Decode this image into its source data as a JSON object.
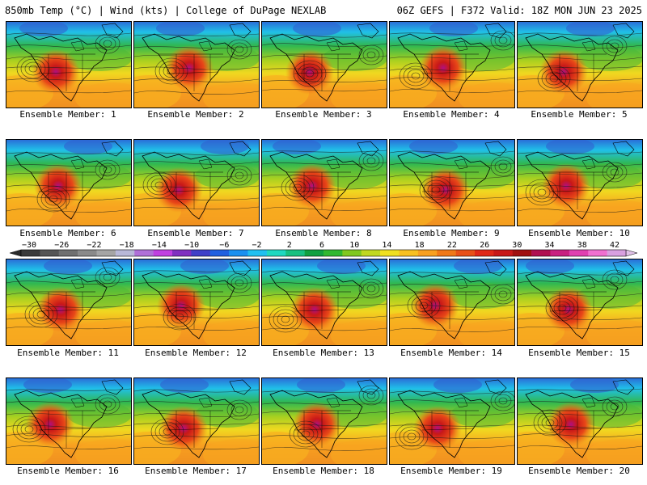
{
  "header": {
    "left": "850mb Temp (°C) | Wind (kts) | College of DuPage NEXLAB",
    "right": "06Z GEFS | F372 Valid: 18Z MON JUN 23 2025"
  },
  "panels": [
    {
      "member": 1,
      "caption": "Ensemble Member: 1"
    },
    {
      "member": 2,
      "caption": "Ensemble Member: 2"
    },
    {
      "member": 3,
      "caption": "Ensemble Member: 3"
    },
    {
      "member": 4,
      "caption": "Ensemble Member: 4"
    },
    {
      "member": 5,
      "caption": "Ensemble Member: 5"
    },
    {
      "member": 6,
      "caption": "Ensemble Member: 6"
    },
    {
      "member": 7,
      "caption": "Ensemble Member: 7"
    },
    {
      "member": 8,
      "caption": "Ensemble Member: 8"
    },
    {
      "member": 9,
      "caption": "Ensemble Member: 9"
    },
    {
      "member": 10,
      "caption": "Ensemble Member: 10"
    },
    {
      "member": 11,
      "caption": "Ensemble Member: 11"
    },
    {
      "member": 12,
      "caption": "Ensemble Member: 12"
    },
    {
      "member": 13,
      "caption": "Ensemble Member: 13"
    },
    {
      "member": 14,
      "caption": "Ensemble Member: 14"
    },
    {
      "member": 15,
      "caption": "Ensemble Member: 15"
    },
    {
      "member": 16,
      "caption": "Ensemble Member: 16"
    },
    {
      "member": 17,
      "caption": "Ensemble Member: 17"
    },
    {
      "member": 18,
      "caption": "Ensemble Member: 18"
    },
    {
      "member": 19,
      "caption": "Ensemble Member: 19"
    },
    {
      "member": 20,
      "caption": "Ensemble Member: 20"
    }
  ],
  "colorbar": {
    "labels": [
      "−30",
      "−26",
      "−22",
      "−18",
      "−14",
      "−10",
      "−6",
      "−2",
      "2",
      "6",
      "10",
      "14",
      "18",
      "22",
      "26",
      "30",
      "34",
      "38",
      "42"
    ],
    "colors": [
      "#3a3a3a",
      "#555555",
      "#707070",
      "#8a8a8a",
      "#a5a5a5",
      "#b8b8d8",
      "#b070d8",
      "#c040e0",
      "#8030c0",
      "#4040c8",
      "#2060e0",
      "#1a90f0",
      "#20c0f0",
      "#20d8c0",
      "#18c080",
      "#10a040",
      "#30b830",
      "#80c820",
      "#c0d820",
      "#f0e020",
      "#f8c020",
      "#f8a020",
      "#f07818",
      "#e85018",
      "#e02818",
      "#c81818",
      "#a01010",
      "#b01050",
      "#c82080",
      "#e040b0",
      "#f070d0",
      "#d8a0e0"
    ]
  }
}
